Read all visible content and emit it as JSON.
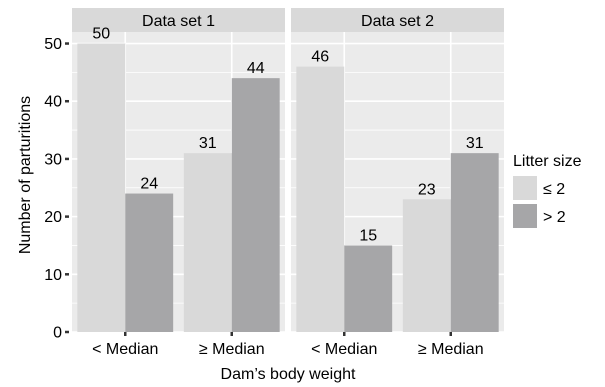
{
  "chart_data": {
    "type": "bar",
    "xlabel": "Dam’s body weight",
    "ylabel": "Number of parturitions",
    "ylim": [
      0,
      52
    ],
    "yticks": [
      0,
      10,
      20,
      30,
      40,
      50
    ],
    "grid": true,
    "categories": [
      "< Median",
      "≥ Median"
    ],
    "legend": {
      "title": "Litter size",
      "position": "right",
      "entries": [
        {
          "label": "≤ 2",
          "color": "#d9d9d9"
        },
        {
          "label": "> 2",
          "color": "#a6a6a8"
        }
      ]
    },
    "panels": [
      {
        "title": "Data set 1",
        "series": [
          {
            "name": "≤ 2",
            "values": [
              50,
              31
            ]
          },
          {
            "name": "> 2",
            "values": [
              24,
              44
            ]
          }
        ]
      },
      {
        "title": "Data set 2",
        "series": [
          {
            "name": "≤ 2",
            "values": [
              46,
              23
            ]
          },
          {
            "name": "> 2",
            "values": [
              15,
              31
            ]
          }
        ]
      }
    ]
  },
  "colors": {
    "panel_background": "#ebebeb",
    "grid": "#ffffff",
    "strip_background": "#d9d9d9",
    "series": [
      "#d9d9d9",
      "#a6a6a8"
    ]
  }
}
